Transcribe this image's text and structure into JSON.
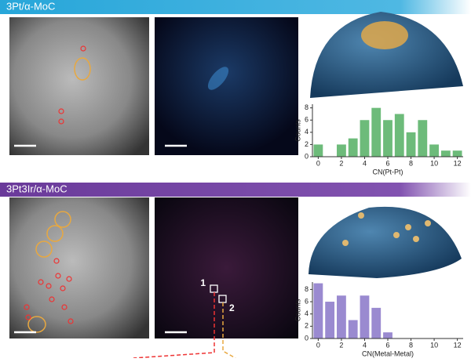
{
  "panels": [
    {
      "label": "3Pt/α-MoC"
    },
    {
      "label": "3Pt3Ir/α-MoC",
      "markers": [
        "1",
        "2"
      ]
    }
  ],
  "chart_data": [
    {
      "type": "bar",
      "x": [
        0,
        1,
        2,
        3,
        4,
        5,
        6,
        7,
        8,
        9,
        10,
        11,
        12
      ],
      "values": [
        2,
        0,
        2,
        3,
        6,
        8,
        6,
        7,
        4,
        6,
        2,
        1,
        1
      ],
      "color": "#6dbb7a",
      "xlim": [
        -0.5,
        12.5
      ],
      "xticks": [
        0,
        2,
        4,
        6,
        8,
        10,
        12
      ],
      "ylim": [
        0,
        8.6
      ],
      "yticks": [
        0,
        2,
        4,
        6,
        8
      ],
      "xlabel": "CN(Pt-Pt)",
      "ylabel": "Counts"
    },
    {
      "type": "bar",
      "x": [
        0,
        1,
        2,
        3,
        4,
        5,
        6,
        7,
        8,
        9,
        10,
        11,
        12
      ],
      "values": [
        9,
        6,
        7,
        3,
        7,
        5,
        1,
        0,
        0,
        0,
        0,
        0,
        0
      ],
      "color": "#9a8ad0",
      "xlim": [
        -0.5,
        12.5
      ],
      "xticks": [
        0,
        2,
        4,
        6,
        8,
        10,
        12
      ],
      "ylim": [
        0,
        9.2
      ],
      "yticks": [
        0,
        2,
        4,
        6,
        8
      ],
      "xlabel": "CN(Metal-Metal)",
      "ylabel": "Counts"
    }
  ]
}
